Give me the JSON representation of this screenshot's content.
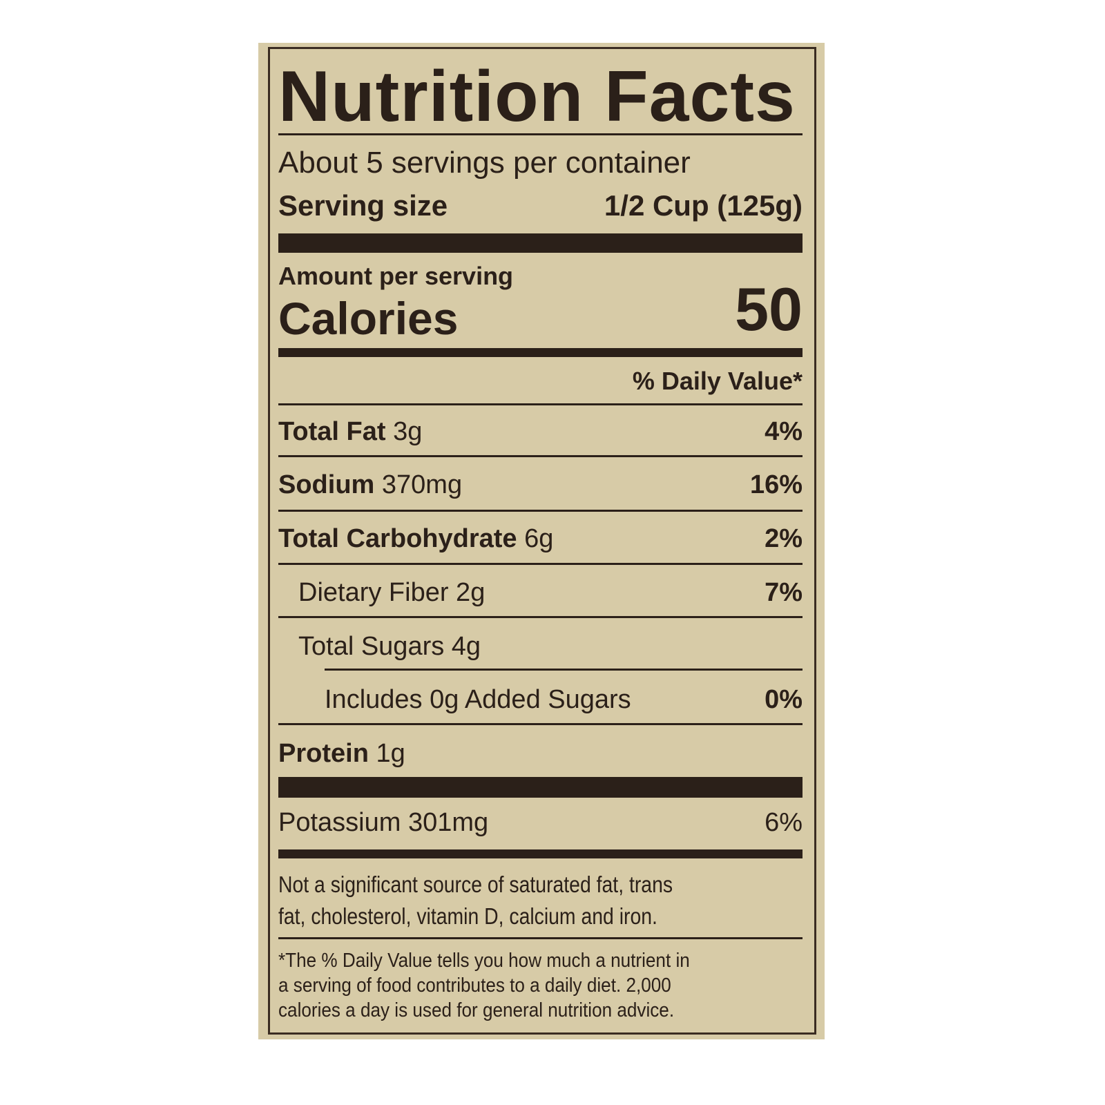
{
  "label": {
    "title": "Nutrition Facts",
    "servings_per_container": "About 5 servings per container",
    "serving_size_label": "Serving size",
    "serving_size_value": "1/2 Cup (125g)",
    "amount_per_serving": "Amount per serving",
    "calories_label": "Calories",
    "calories_value": "50",
    "daily_value_header": "% Daily Value*",
    "nutrients": [
      {
        "name": "Total Fat",
        "amount": "3g",
        "dv": "4%"
      },
      {
        "name": "Sodium",
        "amount": "370mg",
        "dv": "16%"
      },
      {
        "name": "Total Carbohydrate",
        "amount": "6g",
        "dv": "2%"
      },
      {
        "name": "Dietary Fiber 2g",
        "amount": "",
        "dv": "7%"
      },
      {
        "name": "Total Sugars 4g",
        "amount": "",
        "dv": ""
      },
      {
        "name": "Includes 0g Added Sugars",
        "amount": "",
        "dv": "0%"
      },
      {
        "name": "Protein",
        "amount": "1g",
        "dv": ""
      }
    ],
    "potassium": {
      "name": "Potassium 301mg",
      "dv": "6%"
    },
    "not_significant": [
      "Not a significant source of saturated fat, trans",
      "fat, cholesterol, vitamin D, calcium and iron."
    ],
    "footnote": [
      "*The % Daily Value tells you how much a nutrient in",
      "a serving of food contributes to a daily diet. 2,000",
      "calories a day is used for general nutrition advice."
    ]
  },
  "colors": {
    "background": "#d7cba7",
    "ink": "#2b2019"
  }
}
